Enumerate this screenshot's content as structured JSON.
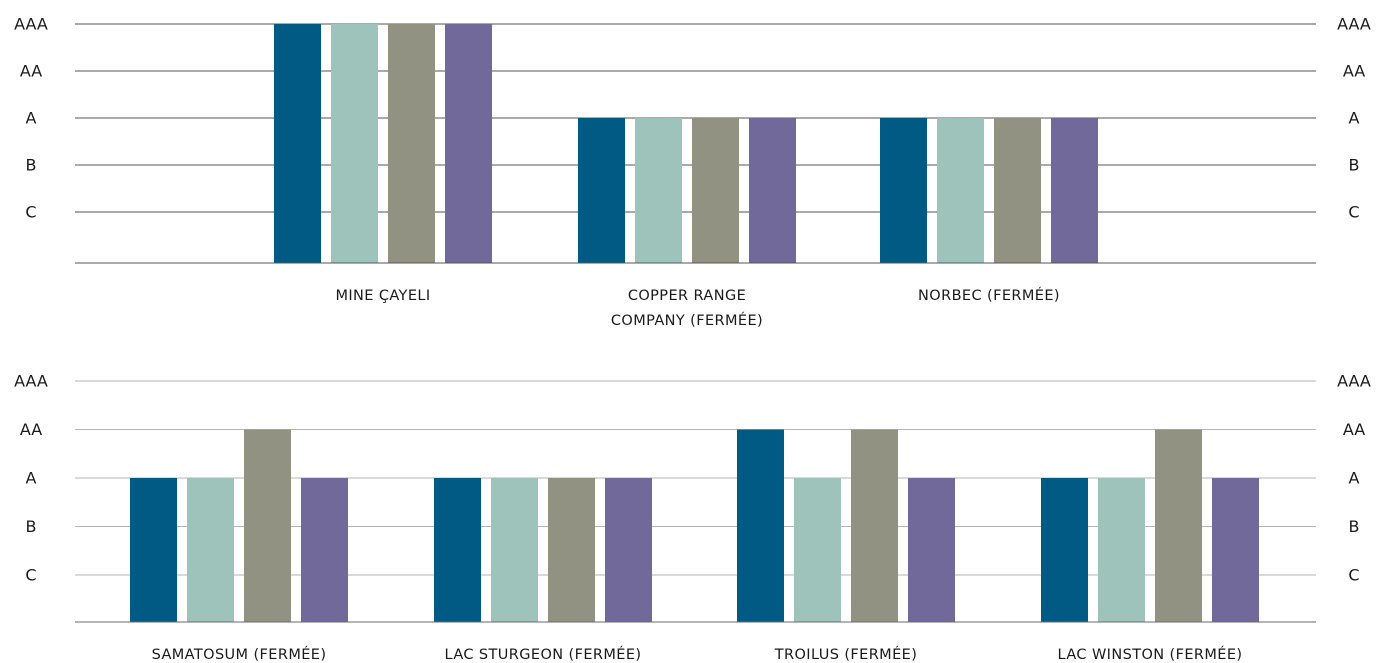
{
  "chart_data": [
    {
      "type": "bar",
      "rating_levels": [
        "C",
        "B",
        "A",
        "AA",
        "AAA"
      ],
      "categories": [
        "MINE ÇAYELI",
        "COPPER RANGE|COMPANY (FERMÉE)",
        "NORBEC (FERMÉE)"
      ],
      "series": [
        {
          "color": "#005a84",
          "values": [
            "AAA",
            "A",
            "A"
          ]
        },
        {
          "color": "#9dc3bb",
          "values": [
            "AAA",
            "A",
            "A"
          ]
        },
        {
          "color": "#929282",
          "values": [
            "AAA",
            "A",
            "A"
          ]
        },
        {
          "color": "#706999",
          "values": [
            "AAA",
            "A",
            "A"
          ]
        }
      ],
      "axis_tick_labels": [
        "AAA",
        "AA",
        "A",
        "B",
        "C"
      ],
      "grid": true
    },
    {
      "type": "bar",
      "rating_levels": [
        "C",
        "B",
        "A",
        "AA",
        "AAA"
      ],
      "categories": [
        "SAMATOSUM (FERMÉE)",
        "LAC STURGEON (FERMÉE)",
        "TROILUS (FERMÉE)",
        "LAC WINSTON (FERMÉE)"
      ],
      "series": [
        {
          "color": "#005a84",
          "values": [
            "A",
            "A",
            "AA",
            "A"
          ]
        },
        {
          "color": "#9dc3bb",
          "values": [
            "A",
            "A",
            "A",
            "A"
          ]
        },
        {
          "color": "#929282",
          "values": [
            "AA",
            "A",
            "AA",
            "AA"
          ]
        },
        {
          "color": "#706999",
          "values": [
            "A",
            "A",
            "A",
            "A"
          ]
        }
      ],
      "axis_tick_labels": [
        "AAA",
        "AA",
        "A",
        "B",
        "C"
      ],
      "grid": true
    }
  ]
}
